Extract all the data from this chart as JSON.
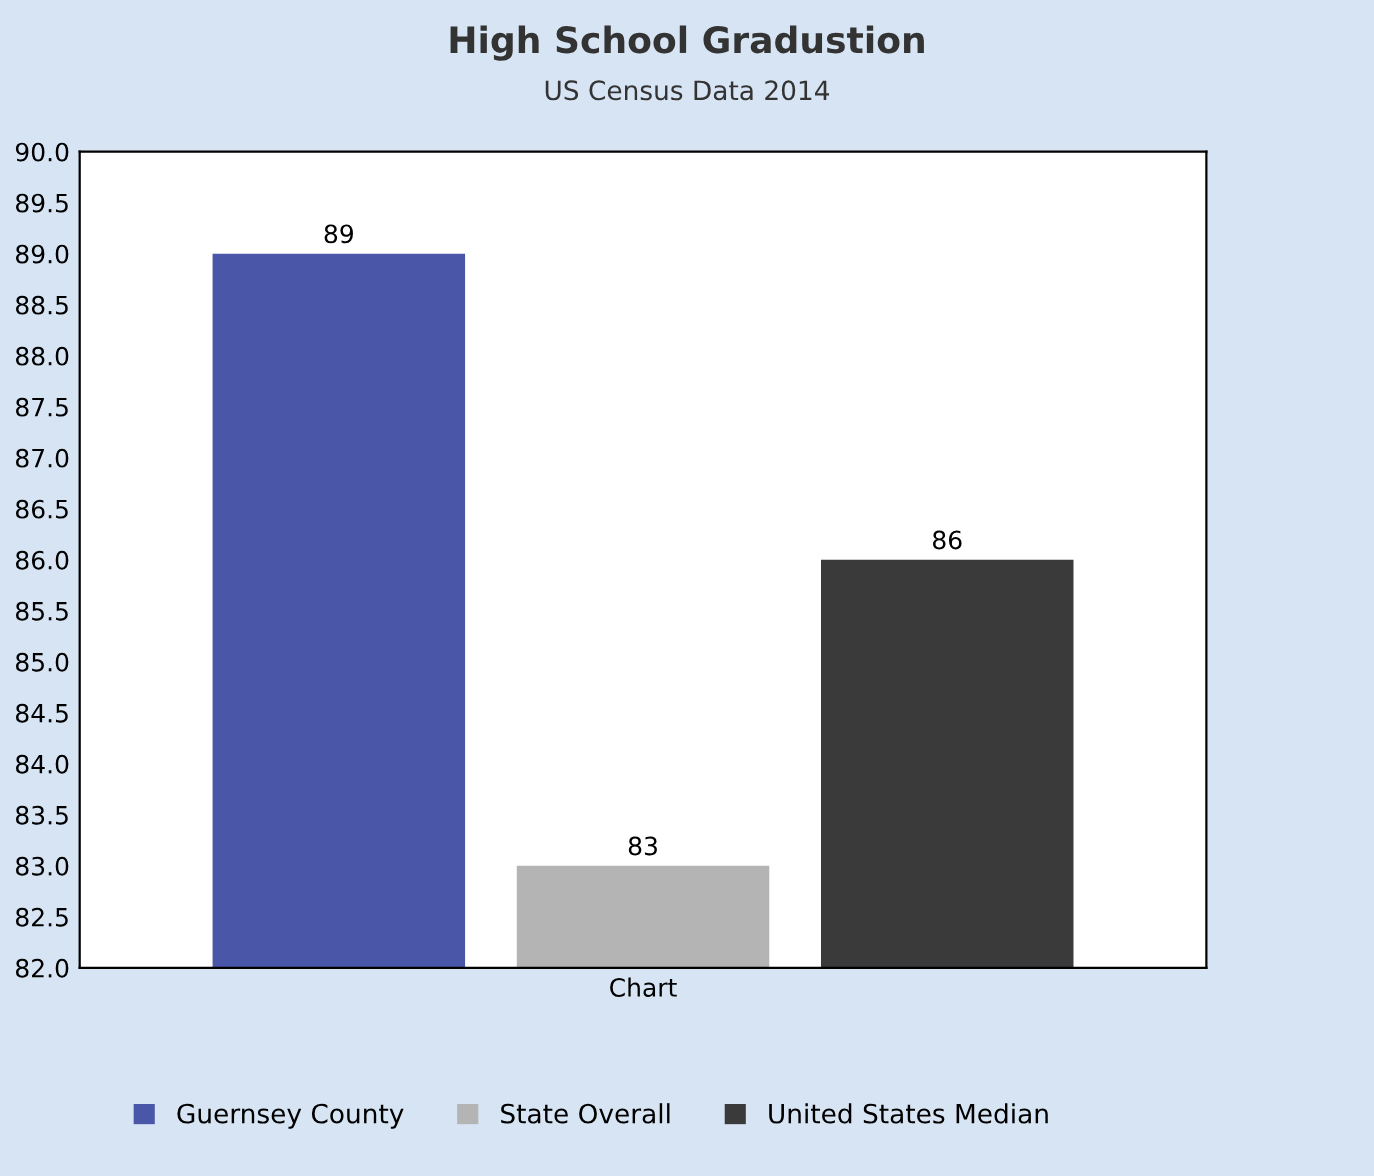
{
  "chart_data": {
    "type": "bar",
    "title": "High School Gradustion",
    "subtitle": "US Census Data 2014",
    "categories": [
      "Chart"
    ],
    "series": [
      {
        "name": "Guernsey County",
        "color": "#4a56a8",
        "values": [
          89
        ]
      },
      {
        "name": "State Overall",
        "color": "#b4b4b4",
        "values": [
          83
        ]
      },
      {
        "name": "United States Median",
        "color": "#3a3a3a",
        "values": [
          86
        ]
      }
    ],
    "ylim": [
      82,
      90
    ],
    "yticks": [
      {
        "value": 82,
        "label": "82.0"
      },
      82.5,
      {
        "value": 83,
        "label": "83.0"
      },
      83.5,
      {
        "value": 84,
        "label": "84.0"
      },
      84.5,
      {
        "value": 85,
        "label": "85.0"
      },
      85.5,
      {
        "value": 86,
        "label": "86.0"
      },
      86.5,
      {
        "value": 87,
        "label": "87.0"
      },
      87.5,
      {
        "value": 88,
        "label": "88.0"
      },
      88.5,
      {
        "value": 89,
        "label": "89.0"
      },
      89.5,
      {
        "value": 90,
        "label": "90.0"
      }
    ],
    "data_labels": true,
    "grid": false,
    "legend": "bottom"
  }
}
